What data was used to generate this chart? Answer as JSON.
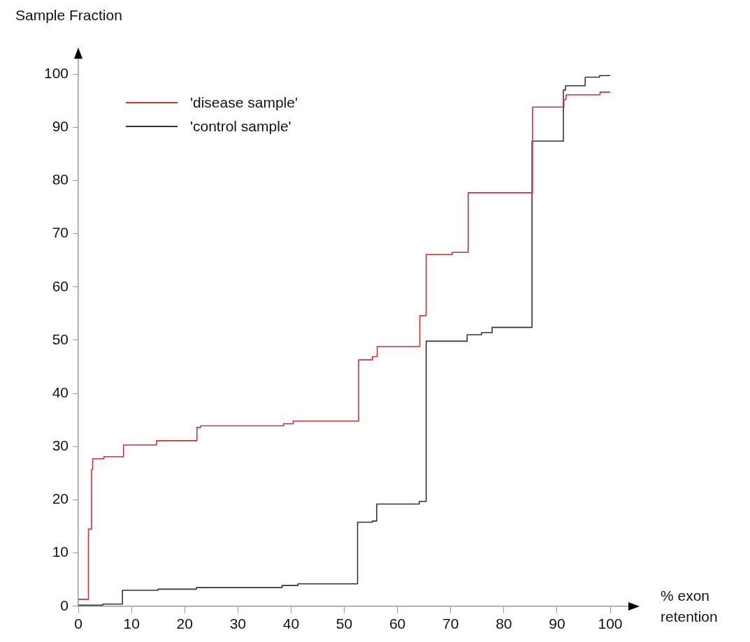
{
  "chart_data": {
    "type": "step",
    "xlabel": "% exon retention",
    "ylabel": "Sample Fraction",
    "xlim": [
      0,
      100
    ],
    "xticks": [
      0,
      10,
      20,
      30,
      40,
      50,
      60,
      70,
      80,
      90,
      100
    ],
    "ylim": [
      0,
      100
    ],
    "yticks": [
      0,
      10,
      20,
      30,
      40,
      50,
      60,
      70,
      80,
      90,
      100
    ],
    "grid": false,
    "legend": "top left",
    "marker": "none",
    "series": [
      {
        "name": "'disease sample'",
        "color": "#cc3333",
        "x": [
          0,
          1.9,
          2.5,
          2.7,
          4.8,
          8.5,
          14.7,
          22.3,
          23,
          38.6,
          40.4,
          52.7,
          55.3,
          56.2,
          64.2,
          65.4,
          70.3,
          73.3,
          85.4,
          91.3,
          91.7,
          98.1,
          100
        ],
        "values": [
          1.3,
          14.5,
          25.7,
          27.7,
          28.1,
          30.3,
          31.1,
          33.6,
          33.9,
          34.3,
          34.8,
          46.3,
          46.9,
          48.8,
          54.6,
          66.1,
          66.5,
          77.7,
          93.8,
          95.2,
          96.1,
          96.6,
          96.6
        ]
      },
      {
        "name": "'control sample'",
        "color": "#333333",
        "x": [
          0,
          4.6,
          8.3,
          15,
          22.2,
          38.3,
          41.3,
          52.5,
          55.3,
          56.1,
          64.1,
          65.4,
          73.1,
          75.8,
          77.8,
          85.3,
          91.2,
          91.6,
          95.3,
          98,
          100
        ],
        "values": [
          0.2,
          0.4,
          3.0,
          3.2,
          3.5,
          3.9,
          4.2,
          15.8,
          16.0,
          19.2,
          19.7,
          49.8,
          51.0,
          51.4,
          52.4,
          87.4,
          97.0,
          97.8,
          99.4,
          99.7,
          99.7
        ]
      }
    ]
  }
}
